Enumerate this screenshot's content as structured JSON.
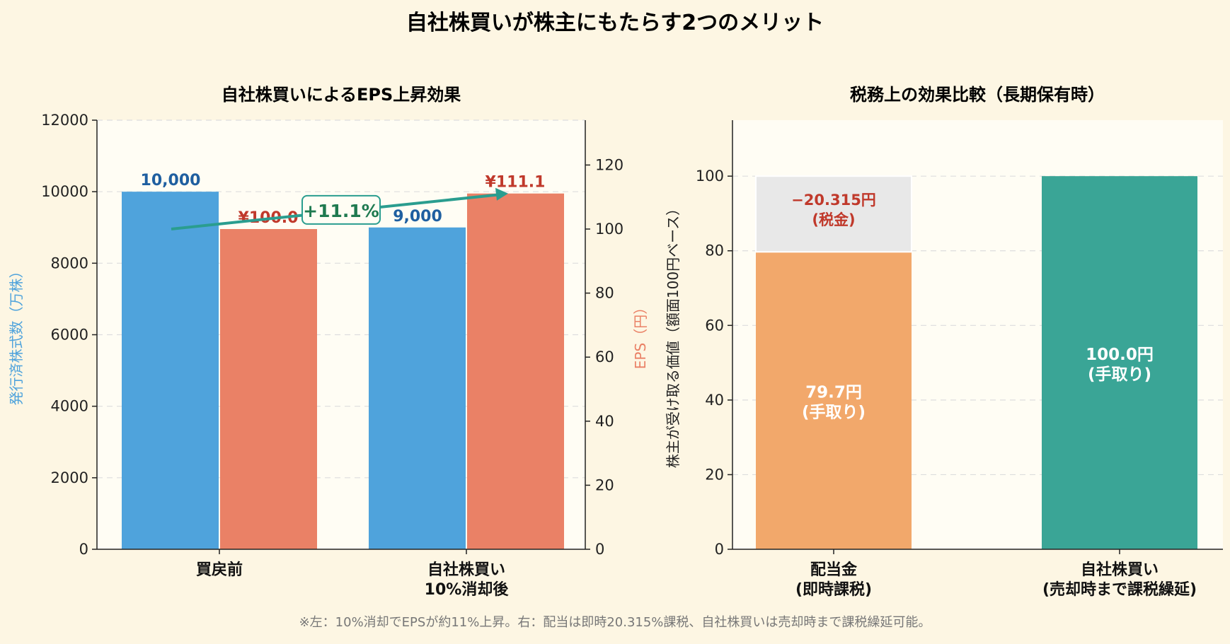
{
  "title": "自社株買いが株主にもたらす2つのメリット",
  "footnote": "※左：10%消却でEPSが約11%上昇。右：配当は即時20.315%課税、自社株買いは売却時まで課税繰延可能。",
  "colors": {
    "shares": "#4fa3dc",
    "eps": "#ea8166",
    "shares_label": "#1f5fa0",
    "eps_label": "#c0392b",
    "arrow": "#2a9d8f",
    "tax": "#e8e8e8",
    "dividend": "#f2a86b",
    "buyback": "#3aa596",
    "plot_bg": "#fffdf4"
  },
  "chart_data": [
    {
      "type": "bar",
      "title": "自社株買いによるEPS上昇効果",
      "categories": [
        "買戻前",
        "自社株買い\n10%消却後"
      ],
      "series": [
        {
          "name": "発行済株式数（万株）",
          "axis": "left",
          "values": [
            10000,
            9000
          ],
          "labels": [
            "10,000",
            "9,000"
          ]
        },
        {
          "name": "EPS（円）",
          "axis": "right",
          "values": [
            100.0,
            111.1
          ],
          "labels": [
            "¥100.0",
            "¥111.1"
          ]
        }
      ],
      "ylabel": "発行済株式数（万株）",
      "ylabel_right": "EPS（円）",
      "ylim": [
        0,
        12000
      ],
      "ylim_right": [
        0,
        134
      ],
      "yticks": [
        0,
        2000,
        4000,
        6000,
        8000,
        10000,
        12000
      ],
      "yticks_right": [
        0,
        20,
        40,
        60,
        80,
        100,
        120
      ],
      "annotation": "+11.1%",
      "grid": true
    },
    {
      "type": "bar",
      "stacked": true,
      "title": "税務上の効果比較（長期保有時）",
      "categories": [
        "配当金\n(即時課税)",
        "自社株買い\n(売却時まで課税繰延)"
      ],
      "series": [
        {
          "name": "手取り",
          "values": [
            79.7,
            100.0
          ],
          "labels": [
            "79.7円\n(手取り)",
            "100.0円\n(手取り)"
          ]
        },
        {
          "name": "税金",
          "values": [
            20.3,
            0
          ],
          "labels": [
            "−20.315円\n(税金)",
            ""
          ]
        }
      ],
      "ylabel": "株主が受け取る価値（額面100円ベース）",
      "ylim": [
        0,
        115
      ],
      "yticks": [
        0,
        20,
        40,
        60,
        80,
        100
      ],
      "grid": true
    }
  ]
}
